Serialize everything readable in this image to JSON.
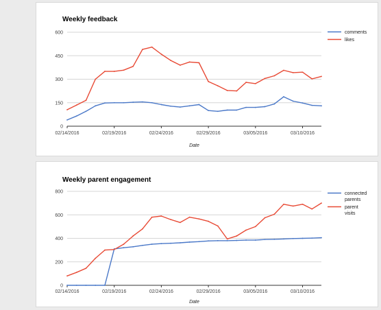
{
  "chart_data": [
    {
      "type": "line",
      "title": "Weekly feedback",
      "xlabel": "Date",
      "ylabel": "",
      "ylim": [
        0,
        600
      ],
      "yticks": [
        "0",
        "150",
        "300",
        "450",
        "600"
      ],
      "xticks": [
        "02/14/2016",
        "02/19/2016",
        "02/24/2016",
        "02/29/2016",
        "03/05/2016",
        "03/10/2016"
      ],
      "grid": true,
      "legend": "right",
      "x": [
        "02/14",
        "02/15",
        "02/16",
        "02/17",
        "02/18",
        "02/19",
        "02/20",
        "02/21",
        "02/22",
        "02/23",
        "02/24",
        "02/25",
        "02/26",
        "02/27",
        "02/28",
        "02/29",
        "03/01",
        "03/02",
        "03/03",
        "03/04",
        "03/05",
        "03/06",
        "03/07",
        "03/08",
        "03/09",
        "03/10",
        "03/11",
        "03/12"
      ],
      "series": [
        {
          "name": "comments",
          "color": "#4a78c8",
          "values": [
            40,
            65,
            95,
            130,
            148,
            150,
            150,
            153,
            155,
            150,
            138,
            128,
            122,
            130,
            138,
            100,
            95,
            103,
            103,
            120,
            120,
            125,
            142,
            188,
            160,
            148,
            133,
            130
          ]
        },
        {
          "name": "likes",
          "color": "#e84a35",
          "values": [
            105,
            135,
            165,
            300,
            350,
            350,
            358,
            382,
            490,
            505,
            460,
            420,
            390,
            410,
            405,
            285,
            258,
            228,
            225,
            280,
            272,
            305,
            322,
            357,
            342,
            345,
            302,
            318
          ]
        }
      ]
    },
    {
      "type": "line",
      "title": "Weekly parent engagement",
      "xlabel": "Date",
      "ylabel": "",
      "ylim": [
        0,
        800
      ],
      "yticks": [
        "0",
        "200",
        "400",
        "600",
        "800"
      ],
      "xticks": [
        "02/14/2016",
        "02/19/2016",
        "02/24/2016",
        "02/29/2016",
        "03/05/2016",
        "03/10/2016"
      ],
      "grid": true,
      "legend": "right",
      "x": [
        "02/14",
        "02/15",
        "02/16",
        "02/17",
        "02/18",
        "02/19",
        "02/20",
        "02/21",
        "02/22",
        "02/23",
        "02/24",
        "02/25",
        "02/26",
        "02/27",
        "02/28",
        "02/29",
        "03/01",
        "03/02",
        "03/03",
        "03/04",
        "03/05",
        "03/06",
        "03/07",
        "03/08",
        "03/09",
        "03/10",
        "03/11",
        "03/12"
      ],
      "series": [
        {
          "name": "connected parents",
          "color": "#4a78c8",
          "values": [
            0,
            0,
            0,
            0,
            0,
            310,
            320,
            328,
            340,
            350,
            355,
            358,
            362,
            368,
            372,
            378,
            380,
            380,
            382,
            385,
            385,
            390,
            392,
            395,
            398,
            400,
            402,
            405
          ]
        },
        {
          "name": "parent visits",
          "color": "#e84a35",
          "values": [
            80,
            110,
            145,
            230,
            300,
            305,
            350,
            420,
            480,
            580,
            590,
            560,
            535,
            580,
            565,
            545,
            505,
            395,
            420,
            470,
            500,
            575,
            605,
            690,
            675,
            690,
            650,
            700
          ]
        }
      ]
    }
  ]
}
